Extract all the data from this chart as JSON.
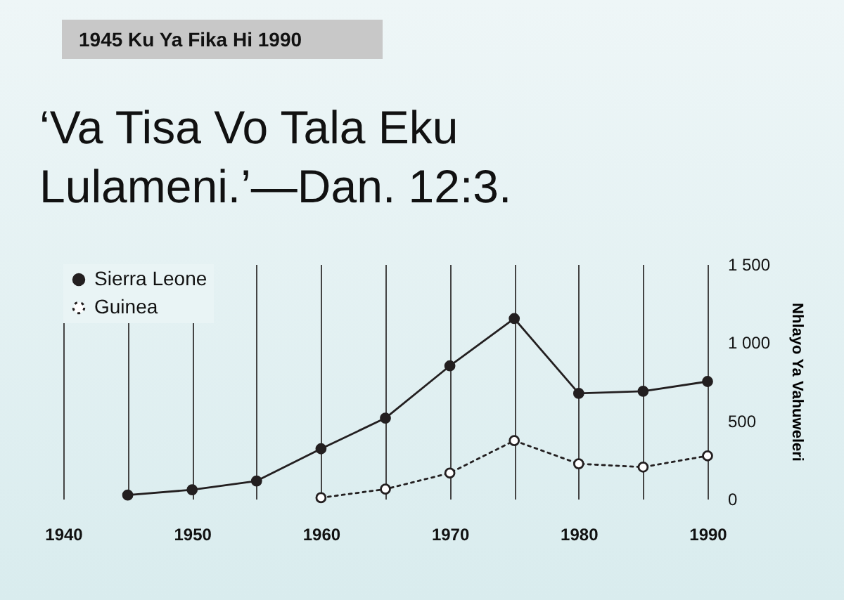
{
  "chart_data": {
    "type": "line",
    "title": "‘Va Tisa Vo Tala Eku Lulameni.’—Dan. 12:3.",
    "subtitle": "1945 Ku Ya Fika Hi 1990",
    "ylabel": "Nhlayo Ya Vahuweleri",
    "x": [
      1945,
      1950,
      1955,
      1960,
      1965,
      1970,
      1975,
      1980,
      1985,
      1990
    ],
    "series": [
      {
        "name": "Sierra Leone",
        "color": "#231f20",
        "line_style": "solid",
        "values": [
          24,
          58,
          114,
          320,
          516,
          850,
          1152,
          674,
          688,
          750
        ]
      },
      {
        "name": "Guinea",
        "color": "#231f20",
        "line_style": "dotted",
        "values": [
          null,
          null,
          null,
          7,
          62,
          165,
          372,
          224,
          203,
          275
        ]
      }
    ],
    "xlim": [
      1940,
      1990
    ],
    "xticks": [
      1940,
      {
        "value": 1945,
        "label": null
      },
      1950,
      {
        "value": 1955,
        "label": null
      },
      1960,
      {
        "value": 1965,
        "label": null
      },
      1970,
      {
        "value": 1975,
        "label": null
      },
      1980,
      {
        "value": 1985,
        "label": null
      },
      1990
    ],
    "ylim": [
      0,
      1500
    ],
    "yticks": [
      0,
      500,
      {
        "value": 1000,
        "label": "1 000"
      },
      {
        "value": 1500,
        "label": "1 500"
      }
    ],
    "grid": "x",
    "legend": "top left",
    "marker": "circle"
  }
}
